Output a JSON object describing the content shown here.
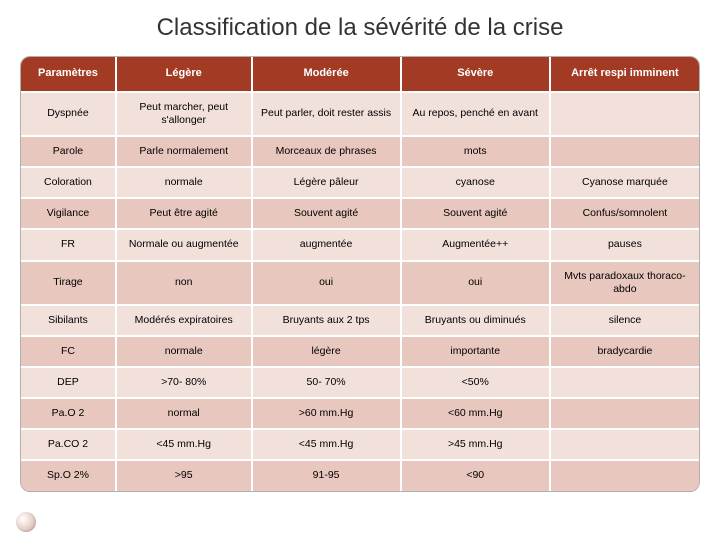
{
  "title": "Classification de la sévérité de la crise",
  "colors": {
    "header_bg": "#a33a24",
    "header_text": "#ffffff",
    "row_even": "#f2e0db",
    "row_odd": "#e8c7be",
    "cell_text": "#000000",
    "border": "#b0b0b0"
  },
  "typography": {
    "title_fontsize": 24,
    "header_fontsize": 11,
    "cell_fontsize": 10.5
  },
  "table": {
    "columns": [
      "Paramètres",
      "Légère",
      "Modérée",
      "Sévère",
      "Arrêt respi imminent"
    ],
    "column_widths_pct": [
      14,
      20,
      22,
      22,
      22
    ],
    "rows": [
      [
        "Dyspnée",
        "Peut marcher, peut s'allonger",
        "Peut parler, doit rester assis",
        "Au repos, penché en avant",
        ""
      ],
      [
        "Parole",
        "Parle normalement",
        "Morceaux de phrases",
        "mots",
        ""
      ],
      [
        "Coloration",
        "normale",
        "Légère pâleur",
        "cyanose",
        "Cyanose marquée"
      ],
      [
        "Vigilance",
        "Peut être agité",
        "Souvent agité",
        "Souvent agité",
        "Confus/somnolent"
      ],
      [
        "FR",
        "Normale ou augmentée",
        "augmentée",
        "Augmentée++",
        "pauses"
      ],
      [
        "Tirage",
        "non",
        "oui",
        "oui",
        "Mvts paradoxaux thoraco-abdo"
      ],
      [
        "Sibilants",
        "Modérés expiratoires",
        "Bruyants aux 2 tps",
        "Bruyants ou diminués",
        "silence"
      ],
      [
        "FC",
        "normale",
        "légère",
        "importante",
        "bradycardie"
      ],
      [
        "DEP",
        ">70- 80%",
        "50- 70%",
        "<50%",
        ""
      ],
      [
        "Pa.O 2",
        "normal",
        ">60 mm.Hg",
        "<60 mm.Hg",
        ""
      ],
      [
        "Pa.CO 2",
        "<45 mm.Hg",
        "<45 mm.Hg",
        ">45 mm.Hg",
        ""
      ],
      [
        "Sp.O 2%",
        ">95",
        "91-95",
        "<90",
        ""
      ]
    ]
  }
}
